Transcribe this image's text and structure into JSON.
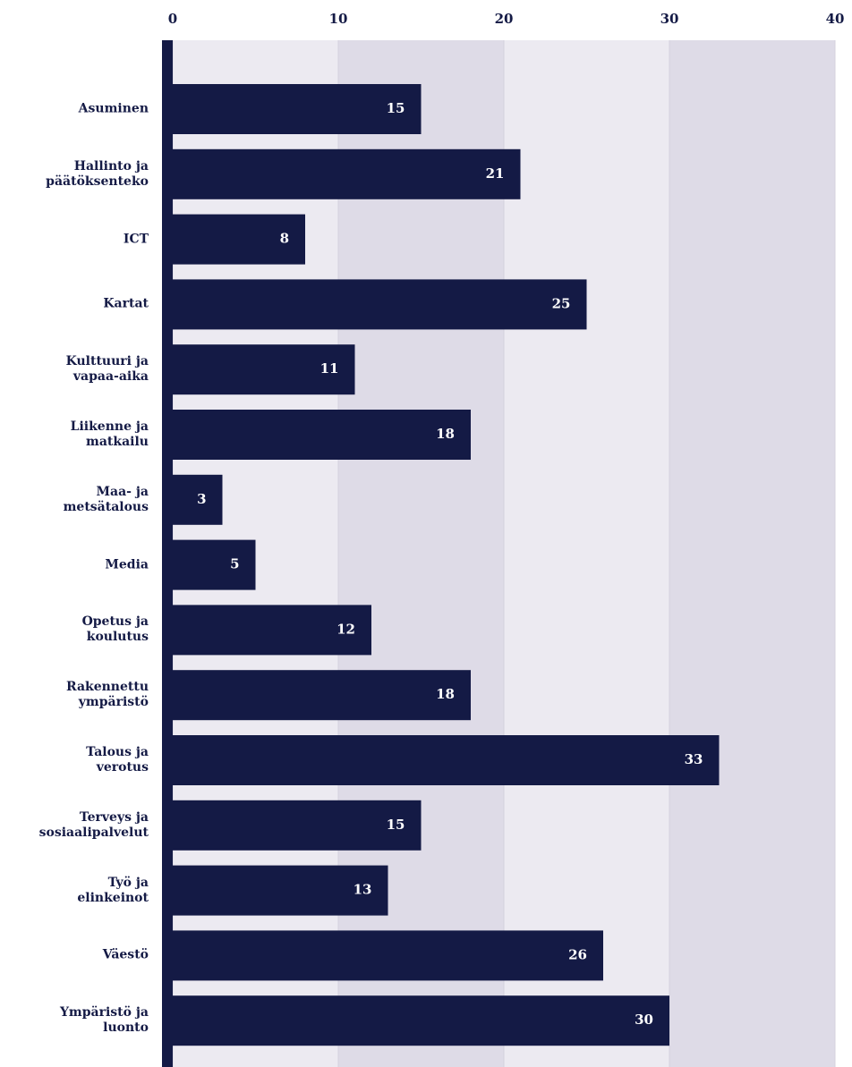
{
  "chart_data": {
    "type": "bar",
    "orientation": "horizontal",
    "categories": [
      "Asuminen",
      "Hallinto ja\npäätöksenteko",
      "ICT",
      "Kartat",
      "Kulttuuri ja\nvapaa-aika",
      "Liikenne ja\nmatkailu",
      "Maa- ja\nmetsätalous",
      "Media",
      "Opetus ja\nkoulutus",
      "Rakennettu\nympäristö",
      "Talous ja\nverotus",
      "Terveys ja\nsosiaalipalvelut",
      "Työ ja\nelinkeinot",
      "Väestö",
      "Ympäristö ja\nluonto"
    ],
    "values": [
      15,
      21,
      8,
      25,
      11,
      18,
      3,
      5,
      12,
      18,
      33,
      15,
      13,
      26,
      30
    ],
    "color": "#141a45",
    "xlim": [
      0,
      40
    ],
    "xticks": [
      0,
      10,
      20,
      30,
      40
    ],
    "grid": true
  }
}
